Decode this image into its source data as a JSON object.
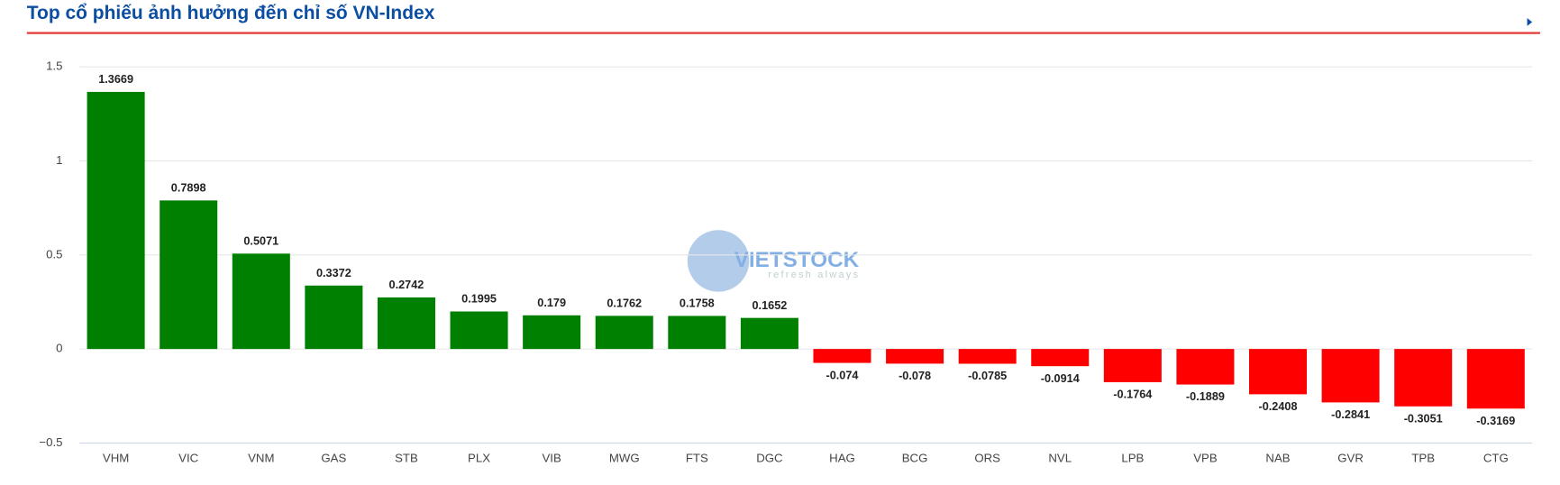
{
  "chart_data": {
    "type": "bar",
    "title": "Top cổ phiếu ảnh hưởng đến chỉ số VN-Index",
    "watermark": "VIETSTOCK",
    "watermark_subtitle": "refresh always",
    "categories": [
      "VHM",
      "VIC",
      "VNM",
      "GAS",
      "STB",
      "PLX",
      "VIB",
      "MWG",
      "FTS",
      "DGC",
      "HAG",
      "BCG",
      "ORS",
      "NVL",
      "LPB",
      "VPB",
      "NAB",
      "GVR",
      "TPB",
      "CTG"
    ],
    "values": [
      1.3669,
      0.7898,
      0.5071,
      0.3372,
      0.2742,
      0.1995,
      0.179,
      0.1762,
      0.1758,
      0.1652,
      -0.074,
      -0.078,
      -0.0785,
      -0.0914,
      -0.1764,
      -0.1889,
      -0.2408,
      -0.2841,
      -0.3051,
      -0.3169
    ],
    "color_positive": "#008000",
    "color_negative": "#ff0000",
    "ylim": [
      -0.5,
      1.5
    ],
    "yticks": [
      {
        "value": -0.5,
        "label": "−0.5"
      },
      0,
      0.5,
      1,
      1.5
    ],
    "grid": true
  }
}
